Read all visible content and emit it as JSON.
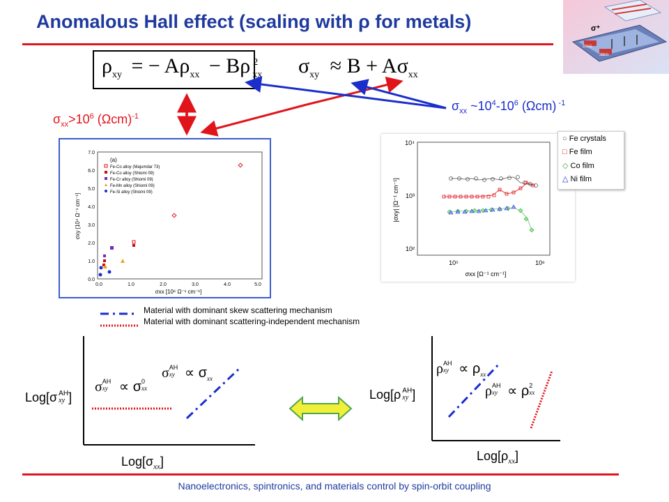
{
  "slide": {
    "title": "Anomalous Hall effect (scaling with ρ for metals)",
    "footer": "Nanoelectronics, spintronics, and materials control by spin-orbit coupling"
  },
  "formulas": {
    "rho_xy": {
      "main": "ρ",
      "sub": "xy",
      "eq": "= − Aρ",
      "sub2": "xx",
      "minus": "− Bρ",
      "sup": "2",
      "sub3": "xx"
    },
    "sigma_xy": {
      "main": "σ",
      "sub": "xy",
      "approx": "≈ B + Aσ",
      "sub2": "xx"
    }
  },
  "annotations": {
    "left": {
      "prefix": "σ",
      "sub": "xx",
      "text": ">10",
      "sup": "6",
      "unit": " (Ωcm)",
      "unit_sup": "-1"
    },
    "right": {
      "prefix": "σ",
      "sub": "xx",
      "text": " ~10",
      "sup1": "4",
      "dash": "-10",
      "sup2": "6",
      "unit": " (Ωcm)",
      "unit_sup": " -1"
    }
  },
  "left_plot": {
    "panel_label": "(a)",
    "legend": [
      "Fe-Co alloy (Majumdar 73)",
      "Fe-Co alloy (Shiomi 09)",
      "Fe-Cr alloy (Shiomi 09)",
      "Fe-Mn alloy (Shiomi 09)",
      "Fe-Si alloy (Shiomi 09)"
    ],
    "y_ticks": [
      "7.0",
      "6.0",
      "5.0",
      "4.0",
      "3.0",
      "2.0",
      "1.0",
      "0.0"
    ],
    "x_ticks": [
      "0.0",
      "1.0",
      "2.0",
      "3.0",
      "4.0",
      "5.0"
    ],
    "xlabel": "σxx [10⁶ Ω⁻¹ cm⁻¹]",
    "ylabel": "σxy [10⁴ Ω⁻¹ cm⁻¹]"
  },
  "right_plot": {
    "legend": [
      "Fe crystals",
      "Fe film",
      "Co film",
      "Ni film"
    ],
    "y_ticks": [
      "10⁴",
      "10³",
      "10²"
    ],
    "x_ticks": [
      "10⁵",
      "10⁶"
    ],
    "xlabel": "σxx [Ω⁻¹ cm⁻¹]",
    "ylabel": "|σxy| [Ω⁻¹ cm⁻¹]"
  },
  "mechanisms": {
    "skew": "Material with dominant skew scattering mechanism",
    "independent": "Material with dominant scattering-independent mechanism"
  },
  "bottom_left": {
    "ylabel_pre": "Log[σ",
    "ylabel_sup": "AH",
    "ylabel_sub": "xy",
    "ylabel_post": "]",
    "xlabel_pre": "Log[σ",
    "xlabel_sub": "xx",
    "xlabel_post": "]",
    "rel1_main": "σ",
    "rel1_sup": "AH",
    "rel1_sub": "xy",
    "rel1_prop": "∝ σ",
    "rel1_sup2": "0",
    "rel1_sub2": "xx",
    "rel2_main": "σ",
    "rel2_sup": "AH",
    "rel2_sub": "xy",
    "rel2_prop": "∝ σ",
    "rel2_sub2": "xx"
  },
  "bottom_right": {
    "ylabel_pre": "Log[ρ",
    "ylabel_sup": "AH",
    "ylabel_sub": "xy",
    "ylabel_post": "]",
    "xlabel_pre": "Log[ρ",
    "xlabel_sub": "xx",
    "xlabel_post": "]",
    "rel1_main": "ρ",
    "rel1_sup": "AH",
    "rel1_sub": "xy",
    "rel1_prop": "∝ ρ",
    "rel1_sub2": "xx",
    "rel2_main": "ρ",
    "rel2_sup": "AH",
    "rel2_sub": "xy",
    "rel2_prop": "∝ ρ",
    "rel2_sup2": "2",
    "rel2_sub2": "xx"
  },
  "colors": {
    "title": "#1f3a9e",
    "accent_red": "#e0141b",
    "blue_arrow": "#1a2ecc",
    "yellow": "#f2ef38",
    "green_outline": "#4da84d"
  }
}
